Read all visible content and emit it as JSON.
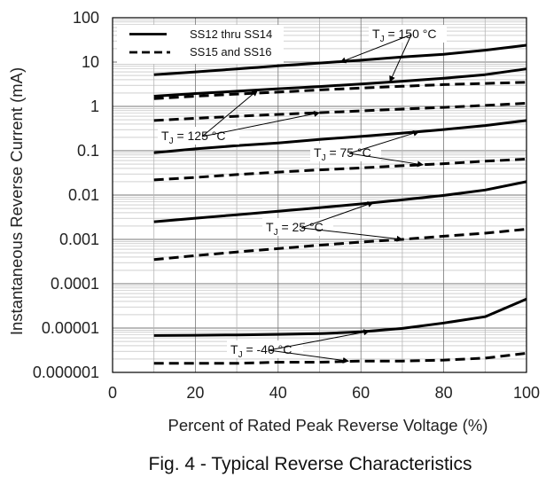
{
  "chart_data": {
    "type": "line",
    "title": "",
    "caption": "Fig. 4 - Typical Reverse Characteristics",
    "xlabel": "Percent of Rated Peak Reverse Voltage (%)",
    "ylabel": "Instantaneous Reverse Current (mA)",
    "xlim": [
      0,
      100
    ],
    "ylim": [
      1e-06,
      100
    ],
    "yscale": "log",
    "grid": true,
    "x_ticks": [
      "0",
      "20",
      "40",
      "60",
      "80",
      "100"
    ],
    "y_ticks": [
      "0.000001",
      "0.00001",
      "0.0001",
      "0.001",
      "0.01",
      "0.1",
      "1",
      "10",
      "100"
    ],
    "legend": {
      "position": "top-left",
      "entries": [
        {
          "label": "SS12 thru SS14",
          "style": "solid"
        },
        {
          "label": "SS15 and SS16",
          "style": "dashed"
        }
      ]
    },
    "series": [
      {
        "group": "TJ = 150 °C",
        "style": "solid",
        "x": [
          10,
          20,
          30,
          40,
          50,
          60,
          70,
          80,
          90,
          100
        ],
        "y": [
          5.2,
          6.0,
          7.0,
          8.2,
          9.5,
          11.0,
          13.0,
          15.0,
          18.5,
          24.0
        ]
      },
      {
        "group": "TJ = 150 °C",
        "style": "solid",
        "x": [
          10,
          20,
          30,
          40,
          50,
          60,
          70,
          80,
          90,
          100
        ],
        "y": [
          1.7,
          1.95,
          2.2,
          2.5,
          2.8,
          3.2,
          3.7,
          4.3,
          5.2,
          7.0
        ]
      },
      {
        "group": "TJ = 150 °C",
        "style": "dashed",
        "x": [
          10,
          20,
          30,
          40,
          50,
          60,
          70,
          80,
          90,
          100
        ],
        "y": [
          1.5,
          1.7,
          1.9,
          2.1,
          2.35,
          2.6,
          2.85,
          3.1,
          3.3,
          3.5
        ]
      },
      {
        "group": "TJ = 125 °C",
        "style": "dashed",
        "x": [
          10,
          20,
          30,
          40,
          50,
          60,
          70,
          80,
          90,
          100
        ],
        "y": [
          0.48,
          0.54,
          0.6,
          0.66,
          0.72,
          0.79,
          0.87,
          0.95,
          1.05,
          1.18
        ]
      },
      {
        "group": "TJ = 75 °C",
        "style": "solid",
        "x": [
          10,
          20,
          30,
          40,
          50,
          60,
          70,
          80,
          90,
          100
        ],
        "y": [
          0.09,
          0.11,
          0.13,
          0.15,
          0.18,
          0.21,
          0.25,
          0.3,
          0.37,
          0.48
        ]
      },
      {
        "group": "TJ = 75 °C",
        "style": "dashed",
        "x": [
          10,
          20,
          30,
          40,
          50,
          60,
          70,
          80,
          90,
          100
        ],
        "y": [
          0.022,
          0.025,
          0.029,
          0.033,
          0.037,
          0.041,
          0.046,
          0.051,
          0.058,
          0.065
        ]
      },
      {
        "group": "TJ = 25 °C",
        "style": "solid",
        "x": [
          10,
          20,
          30,
          40,
          50,
          60,
          70,
          80,
          90,
          100
        ],
        "y": [
          0.0025,
          0.003,
          0.0036,
          0.0043,
          0.0052,
          0.0063,
          0.0078,
          0.0098,
          0.013,
          0.02
        ]
      },
      {
        "group": "TJ = 25 °C",
        "style": "dashed",
        "x": [
          10,
          20,
          30,
          40,
          50,
          60,
          70,
          80,
          90,
          100
        ],
        "y": [
          0.00035,
          0.00043,
          0.00052,
          0.00062,
          0.00074,
          0.00087,
          0.001,
          0.00118,
          0.00138,
          0.0017
        ]
      },
      {
        "group": "TJ = -40 °C",
        "style": "solid",
        "x": [
          10,
          20,
          30,
          40,
          50,
          60,
          70,
          80,
          90,
          100
        ],
        "y": [
          6.8e-06,
          6.9e-06,
          7e-06,
          7.2e-06,
          7.5e-06,
          8.2e-06,
          9.8e-06,
          1.3e-05,
          1.8e-05,
          4.5e-05
        ]
      },
      {
        "group": "TJ = -40 °C",
        "style": "dashed",
        "x": [
          10,
          20,
          30,
          40,
          50,
          60,
          70,
          80,
          90,
          100
        ],
        "y": [
          1.6e-06,
          1.6e-06,
          1.6e-06,
          1.7e-06,
          1.7e-06,
          1.8e-06,
          1.8e-06,
          1.9e-06,
          2.1e-06,
          2.7e-06
        ]
      }
    ],
    "annotations": [
      {
        "text": "TJ = 150 °C",
        "main": "T",
        "sub": "J",
        "rest": " = 150 °C",
        "arrows_to_x": [
          55,
          67
        ]
      },
      {
        "text": "TJ = 125 °C",
        "main": "T",
        "sub": "J",
        "rest": " = 125 °C",
        "arrows_to_x": [
          35,
          50
        ]
      },
      {
        "text": "TJ = 75 °C",
        "main": "T",
        "sub": "J",
        "rest": " = 75 °C",
        "arrows_to_x": [
          74,
          75
        ]
      },
      {
        "text": "TJ = 25 °C",
        "main": "T",
        "sub": "J",
        "rest": " = 25 °C",
        "arrows_to_x": [
          63,
          70
        ]
      },
      {
        "text": "TJ = -40 °C",
        "main": "T",
        "sub": "J",
        "rest": " = -40 °C",
        "arrows_to_x": [
          62,
          57
        ]
      }
    ]
  }
}
